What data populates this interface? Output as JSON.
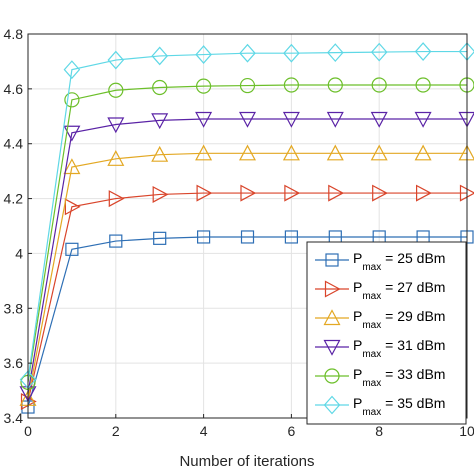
{
  "chart_data": {
    "type": "line",
    "title": "",
    "xlabel": "Number of iterations",
    "ylabel": "",
    "xlim": [
      0,
      10
    ],
    "ylim": [
      3.4,
      4.8
    ],
    "x_ticks": [
      0,
      2,
      4,
      6,
      8,
      10
    ],
    "y_ticks": [
      3.4,
      3.6,
      3.8,
      4,
      4.2,
      4.4,
      4.6,
      4.8
    ],
    "x_tick_labels": [
      "0",
      "2",
      "4",
      "6",
      "8",
      "10"
    ],
    "y_tick_labels": [
      "3.4",
      "3.6",
      "3.8",
      "4",
      "4.2",
      "4.4",
      "4.6",
      "4.8"
    ],
    "grid": true,
    "legend_position": "bottom-right",
    "x": [
      0,
      1,
      2,
      3,
      4,
      5,
      6,
      7,
      8,
      9,
      10
    ],
    "series": [
      {
        "name": "P",
        "name_sub": "max",
        "name_suffix": " = 25 dBm",
        "color": "#2e6fb5",
        "marker": "square",
        "values": [
          3.44,
          4.015,
          4.045,
          4.055,
          4.06,
          4.06,
          4.06,
          4.06,
          4.06,
          4.06,
          4.06
        ]
      },
      {
        "name": "P",
        "name_sub": "max",
        "name_suffix": " = 27 dBm",
        "color": "#d9452b",
        "marker": "triangle-right",
        "values": [
          3.46,
          4.17,
          4.2,
          4.215,
          4.22,
          4.22,
          4.22,
          4.22,
          4.22,
          4.22,
          4.22
        ]
      },
      {
        "name": "P",
        "name_sub": "max",
        "name_suffix": " = 29 dBm",
        "color": "#e3a823",
        "marker": "triangle-up",
        "values": [
          3.47,
          4.315,
          4.345,
          4.36,
          4.365,
          4.365,
          4.365,
          4.365,
          4.365,
          4.365,
          4.365
        ]
      },
      {
        "name": "P",
        "name_sub": "max",
        "name_suffix": " = 31 dBm",
        "color": "#5a23a6",
        "marker": "triangle-down",
        "values": [
          3.49,
          4.44,
          4.47,
          4.485,
          4.49,
          4.49,
          4.49,
          4.49,
          4.49,
          4.49,
          4.49
        ]
      },
      {
        "name": "P",
        "name_sub": "max",
        "name_suffix": " = 33 dBm",
        "color": "#6cbf2a",
        "marker": "circle",
        "values": [
          3.53,
          4.56,
          4.595,
          4.605,
          4.61,
          4.612,
          4.614,
          4.614,
          4.614,
          4.614,
          4.614
        ]
      },
      {
        "name": "P",
        "name_sub": "max",
        "name_suffix": " = 35 dBm",
        "color": "#5fd8e6",
        "marker": "diamond",
        "values": [
          3.54,
          4.67,
          4.705,
          4.72,
          4.725,
          4.73,
          4.73,
          4.732,
          4.734,
          4.736,
          4.736
        ]
      }
    ]
  }
}
